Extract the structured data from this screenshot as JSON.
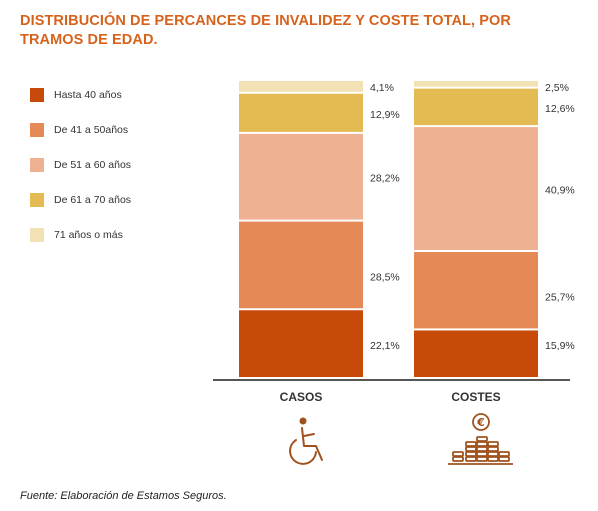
{
  "title_lines": [
    "DISTRIBUCIÓN DE PERCANCES DE INVALIDEZ Y COSTE TOTAL, POR",
    "TRAMOS DE EDAD."
  ],
  "source": "Fuente: Elaboración de Estamos Seguros.",
  "colors": {
    "title": "#d6621c",
    "axis": "#555555",
    "icon": "#a0521e"
  },
  "chart_data": {
    "type": "bar",
    "stacked": true,
    "unit": "%",
    "categories": [
      "CASOS",
      "COSTES"
    ],
    "ylim": [
      0,
      100
    ],
    "legend_position": "left",
    "grid": false,
    "series": [
      {
        "name": "Hasta 40 años",
        "color": "#c84a0a",
        "values": [
          22.1,
          15.9
        ],
        "labels": [
          "22,1%",
          "15,9%"
        ]
      },
      {
        "name": "De 41 a 50años",
        "color": "#e58a56",
        "values": [
          28.5,
          25.7
        ],
        "labels": [
          "28,5%",
          "25,7%"
        ]
      },
      {
        "name": "De 51 a 60 años",
        "color": "#eeb192",
        "values": [
          28.2,
          40.9
        ],
        "labels": [
          "28,2%",
          "40,9%"
        ]
      },
      {
        "name": "De 61 a 70 años",
        "color": "#e4bb52",
        "values": [
          12.9,
          12.6
        ],
        "labels": [
          "12,9%",
          "12,6%"
        ]
      },
      {
        "name": "71 años o más",
        "color": "#f2e1b5",
        "values": [
          4.1,
          2.5
        ],
        "labels": [
          "4,1%",
          "2,5%"
        ]
      }
    ],
    "category_icons": [
      "wheelchair-icon",
      "euro-coins-icon"
    ]
  }
}
